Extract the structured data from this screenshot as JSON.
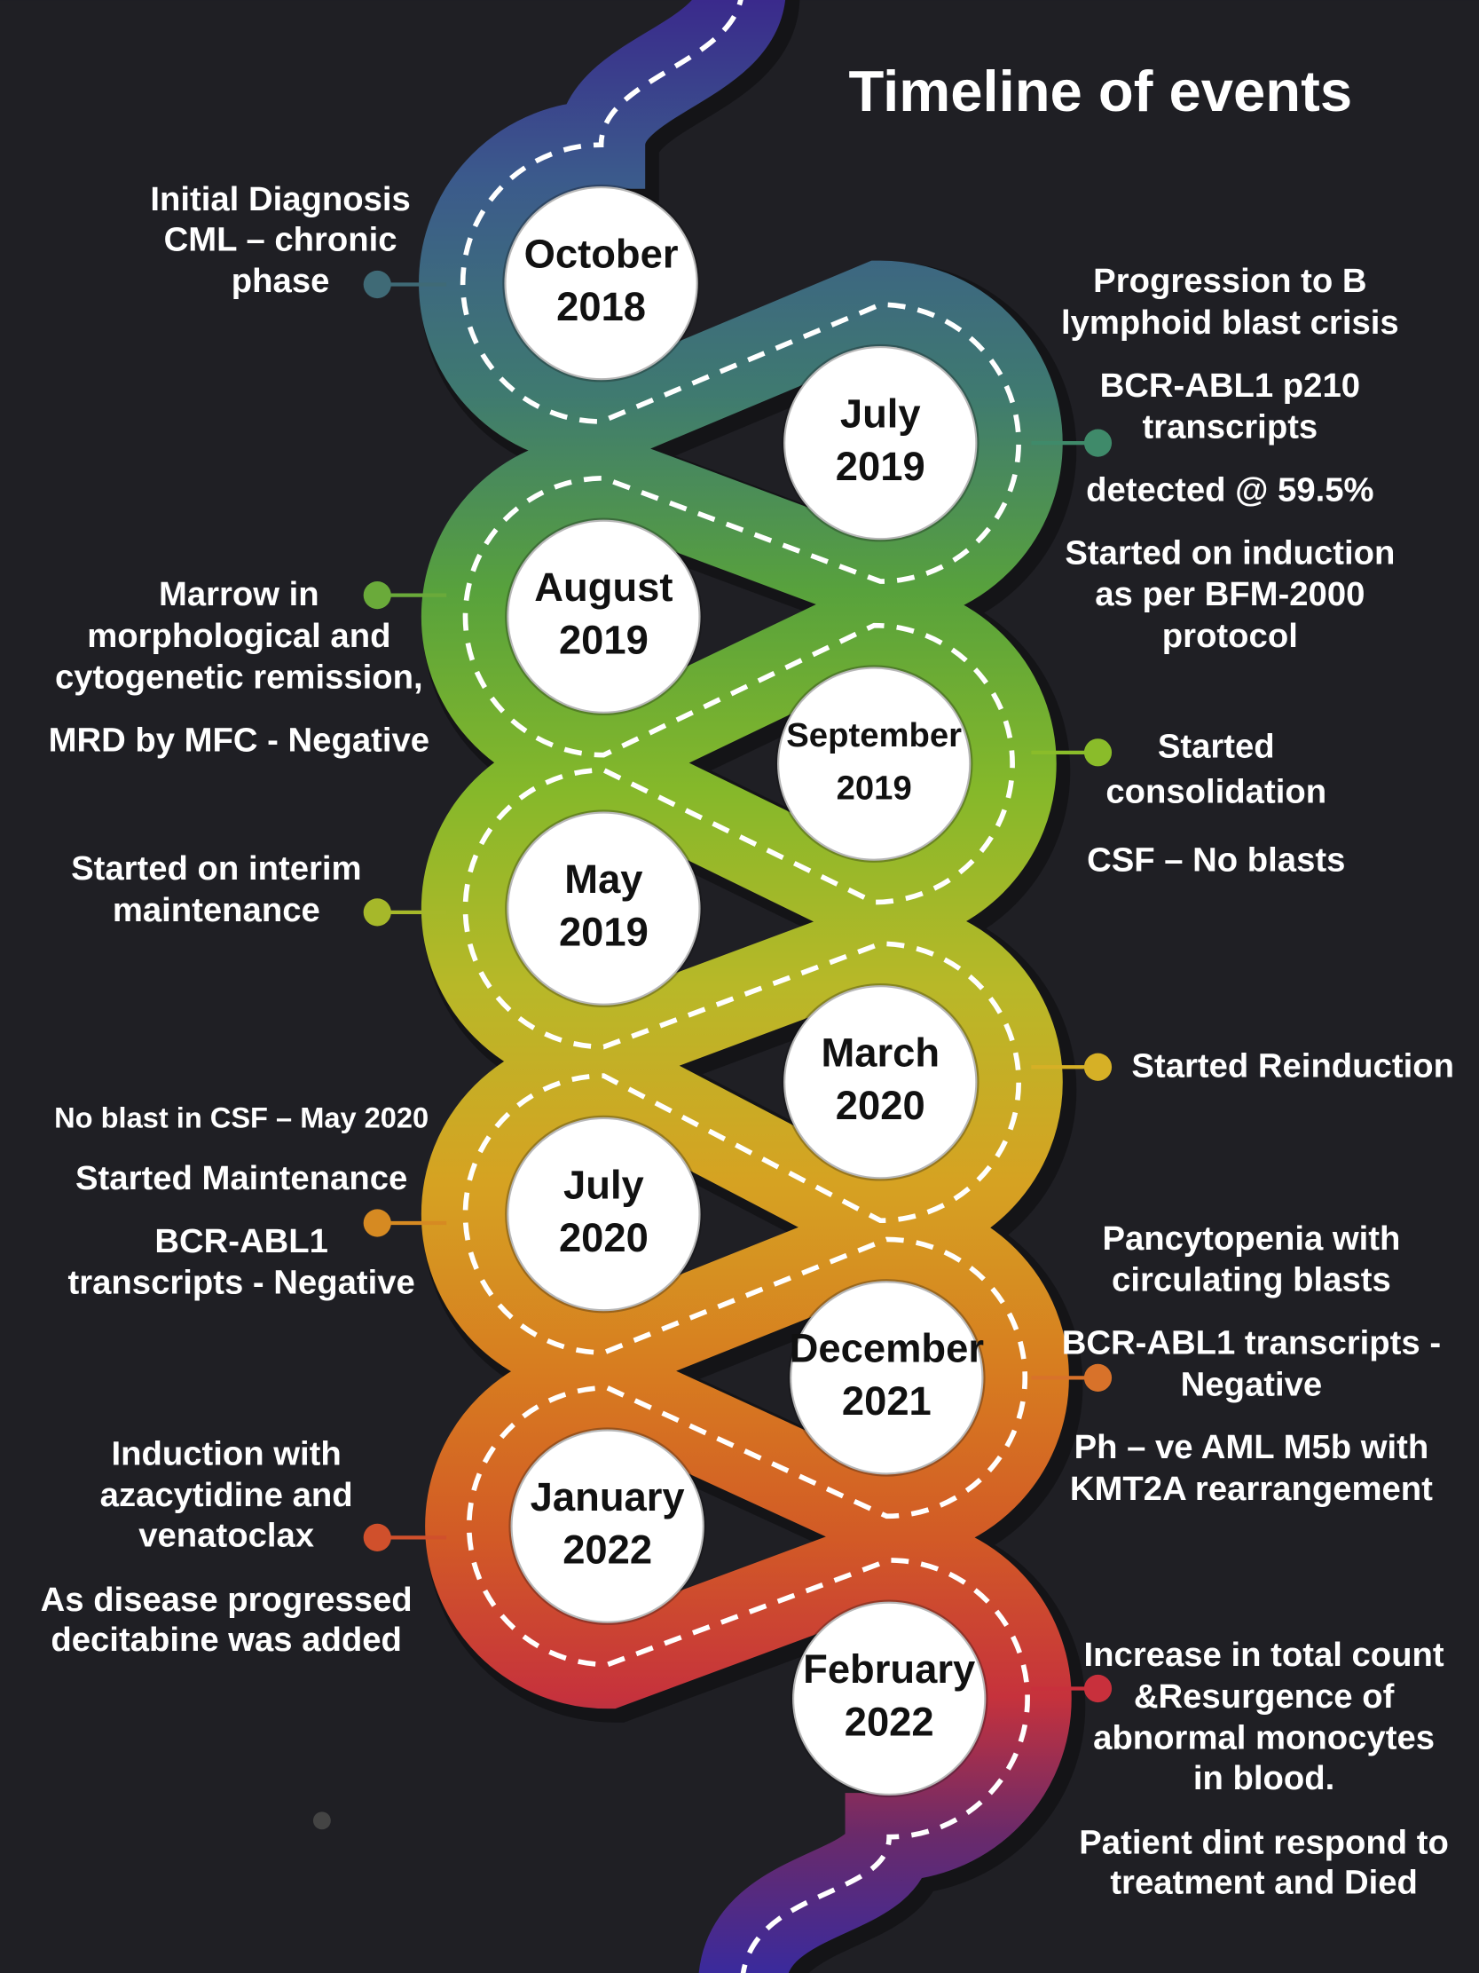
{
  "title": "Timeline of events",
  "events": [
    {
      "date": [
        "October",
        "2018"
      ],
      "notes": [
        {
          "lines": [
            "Initial Diagnosis",
            "CML – chronic",
            "phase"
          ]
        }
      ]
    },
    {
      "date": [
        "July",
        "2019"
      ],
      "notes": [
        {
          "lines": [
            "Progression to B",
            "lymphoid blast crisis"
          ]
        },
        {
          "lines": [
            "BCR-ABL1 p210",
            "transcripts"
          ]
        },
        {
          "lines": [
            "detected @ 59.5%"
          ]
        },
        {
          "lines": [
            "Started on induction",
            "as per BFM-2000",
            "protocol"
          ]
        }
      ]
    },
    {
      "date": [
        "August",
        "2019"
      ],
      "notes": [
        {
          "lines": [
            "Marrow in",
            "morphological and",
            "cytogenetic remission,"
          ]
        },
        {
          "lines": [
            "MRD by MFC - Negative"
          ]
        }
      ]
    },
    {
      "date": [
        "September",
        "2019"
      ],
      "notes": [
        {
          "lines": [
            "Started",
            "consolidation"
          ]
        },
        {
          "lines": [
            "CSF – No blasts"
          ]
        }
      ]
    },
    {
      "date": [
        "May",
        "2019"
      ],
      "notes": [
        {
          "lines": [
            "Started on interim",
            "maintenance"
          ]
        }
      ]
    },
    {
      "date": [
        "March",
        "2020"
      ],
      "notes": [
        {
          "lines": [
            "Started Reinduction"
          ]
        }
      ]
    },
    {
      "date": [
        "July",
        "2020"
      ],
      "notes": [
        {
          "lines": [
            "No blast in CSF – May 2020"
          ]
        },
        {
          "lines": [
            "Started Maintenance"
          ]
        },
        {
          "lines": [
            "BCR-ABL1",
            "transcripts - Negative"
          ]
        }
      ]
    },
    {
      "date": [
        "December",
        "2021"
      ],
      "notes": [
        {
          "lines": [
            "Pancytopenia with",
            "circulating blasts"
          ]
        },
        {
          "lines": [
            "BCR-ABL1 transcripts -",
            "Negative"
          ]
        },
        {
          "lines": [
            "Ph – ve AML M5b  with",
            "KMT2A rearrangement"
          ]
        }
      ]
    },
    {
      "date": [
        "January",
        "2022"
      ],
      "notes": [
        {
          "lines": [
            "Induction with",
            "azacytidine and",
            "venatoclax"
          ]
        },
        {
          "lines": [
            "As disease progressed",
            "decitabine was added"
          ]
        }
      ]
    },
    {
      "date": [
        "February",
        "2022"
      ],
      "notes": [
        {
          "lines": [
            "Increase in total count",
            "&Resurgence of",
            "abnormal monocytes",
            "in blood."
          ]
        },
        {
          "lines": [
            "Patient dint respond to",
            "treatment and Died"
          ]
        }
      ]
    }
  ]
}
